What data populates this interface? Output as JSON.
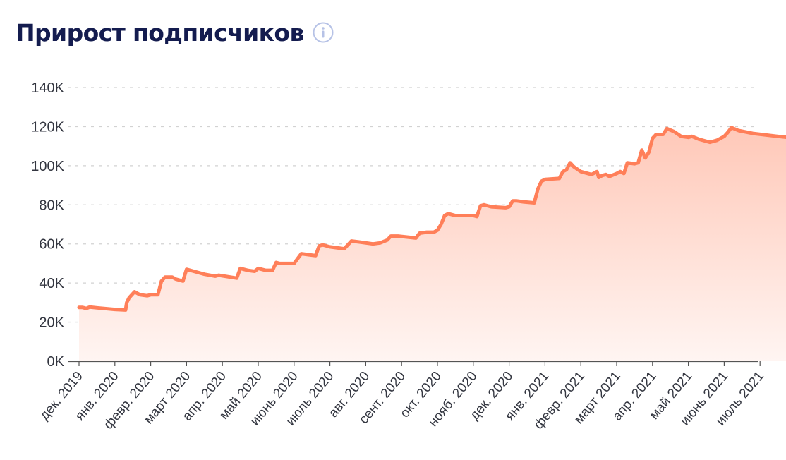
{
  "title": "Прирост подписчиков",
  "info_icon": "info-icon",
  "colors": {
    "title": "#141c4f",
    "line": "#ff7f59",
    "fill_top": "#ffcabb",
    "fill_bottom": "#fff4f1",
    "grid": "#d4d4d4",
    "info": "#b6c2e6"
  },
  "chart_data": {
    "type": "area",
    "title": "Прирост подписчиков",
    "xlabel": "",
    "ylabel": "",
    "ylim": [
      0,
      140000
    ],
    "grid": true,
    "y_ticks": [
      0,
      20000,
      40000,
      60000,
      80000,
      100000,
      120000,
      140000
    ],
    "y_tick_labels": [
      "0K",
      "20K",
      "40K",
      "60K",
      "80K",
      "100K",
      "120K",
      "140K"
    ],
    "x_tick_labels": [
      "дек. 2019",
      "янв. 2020",
      "февр. 2020",
      "март 2020",
      "апр. 2020",
      "май 2020",
      "июнь 2020",
      "июль 2020",
      "авг. 2020",
      "сент. 2020",
      "окт. 2020",
      "нояб. 2020",
      "дек. 2020",
      "янв. 2021",
      "февр. 2021",
      "март 2021",
      "апр. 2021",
      "май 2021",
      "июнь 2021",
      "июль 2021"
    ],
    "series": [
      {
        "values": [
          [
            0,
            27500
          ],
          [
            0.1,
            27500
          ],
          [
            0.2,
            27000
          ],
          [
            0.3,
            27700
          ],
          [
            0.5,
            27300
          ],
          [
            1.0,
            26500
          ],
          [
            1.3,
            26200
          ],
          [
            1.33,
            30000
          ],
          [
            1.4,
            32500
          ],
          [
            1.55,
            35500
          ],
          [
            1.7,
            34000
          ],
          [
            1.9,
            33500
          ],
          [
            2.0,
            34000
          ],
          [
            2.2,
            34000
          ],
          [
            2.3,
            41000
          ],
          [
            2.4,
            43000
          ],
          [
            2.6,
            43000
          ],
          [
            2.7,
            42000
          ],
          [
            2.9,
            41000
          ],
          [
            3.0,
            47000
          ],
          [
            3.2,
            46000
          ],
          [
            3.5,
            44500
          ],
          [
            3.8,
            43500
          ],
          [
            3.9,
            44000
          ],
          [
            4.4,
            42500
          ],
          [
            4.5,
            47500
          ],
          [
            4.7,
            46500
          ],
          [
            4.9,
            46000
          ],
          [
            5.0,
            47500
          ],
          [
            5.2,
            46500
          ],
          [
            5.4,
            46500
          ],
          [
            5.5,
            50500
          ],
          [
            5.6,
            50000
          ],
          [
            5.8,
            50000
          ],
          [
            6.0,
            50000
          ],
          [
            6.2,
            55000
          ],
          [
            6.4,
            54500
          ],
          [
            6.6,
            54000
          ],
          [
            6.7,
            59000
          ],
          [
            6.8,
            59500
          ],
          [
            7.0,
            58500
          ],
          [
            7.4,
            57500
          ],
          [
            7.6,
            61500
          ],
          [
            7.8,
            61000
          ],
          [
            8.2,
            60000
          ],
          [
            8.4,
            60500
          ],
          [
            8.6,
            62000
          ],
          [
            8.7,
            64000
          ],
          [
            8.9,
            64000
          ],
          [
            9.4,
            63000
          ],
          [
            9.5,
            65500
          ],
          [
            9.7,
            66000
          ],
          [
            9.9,
            66000
          ],
          [
            10.0,
            67000
          ],
          [
            10.1,
            70000
          ],
          [
            10.2,
            74500
          ],
          [
            10.3,
            75500
          ],
          [
            10.5,
            74500
          ],
          [
            11.0,
            74500
          ],
          [
            11.1,
            74000
          ],
          [
            11.2,
            79500
          ],
          [
            11.3,
            80000
          ],
          [
            11.5,
            79000
          ],
          [
            11.9,
            78500
          ],
          [
            12.0,
            79000
          ],
          [
            12.1,
            82000
          ],
          [
            12.2,
            82000
          ],
          [
            12.4,
            81500
          ],
          [
            12.7,
            81000
          ],
          [
            12.8,
            88000
          ],
          [
            12.9,
            92000
          ],
          [
            13.0,
            93000
          ],
          [
            13.4,
            93500
          ],
          [
            13.5,
            97000
          ],
          [
            13.6,
            98000
          ],
          [
            13.7,
            101500
          ],
          [
            13.8,
            99500
          ],
          [
            14.0,
            97000
          ],
          [
            14.3,
            95500
          ],
          [
            14.45,
            97000
          ],
          [
            14.5,
            94000
          ],
          [
            14.6,
            95000
          ],
          [
            14.7,
            95500
          ],
          [
            14.8,
            94500
          ],
          [
            15.0,
            96000
          ],
          [
            15.1,
            97000
          ],
          [
            15.2,
            96000
          ],
          [
            15.3,
            101500
          ],
          [
            15.5,
            101000
          ],
          [
            15.6,
            101500
          ],
          [
            15.7,
            108000
          ],
          [
            15.8,
            104000
          ],
          [
            15.9,
            107000
          ],
          [
            16.0,
            114000
          ],
          [
            16.1,
            116000
          ],
          [
            16.3,
            116000
          ],
          [
            16.4,
            119000
          ],
          [
            16.6,
            117500
          ],
          [
            16.8,
            115000
          ],
          [
            17.0,
            114500
          ],
          [
            17.1,
            115000
          ],
          [
            17.3,
            113500
          ],
          [
            17.6,
            112000
          ],
          [
            17.8,
            113000
          ],
          [
            18.0,
            115000
          ],
          [
            18.1,
            117000
          ],
          [
            18.2,
            119500
          ],
          [
            18.4,
            118000
          ],
          [
            18.8,
            116500
          ],
          [
            19.5,
            115000
          ],
          [
            20.5,
            113000
          ],
          [
            21.5,
            111000
          ],
          [
            21.8,
            110500
          ]
        ]
      }
    ]
  }
}
